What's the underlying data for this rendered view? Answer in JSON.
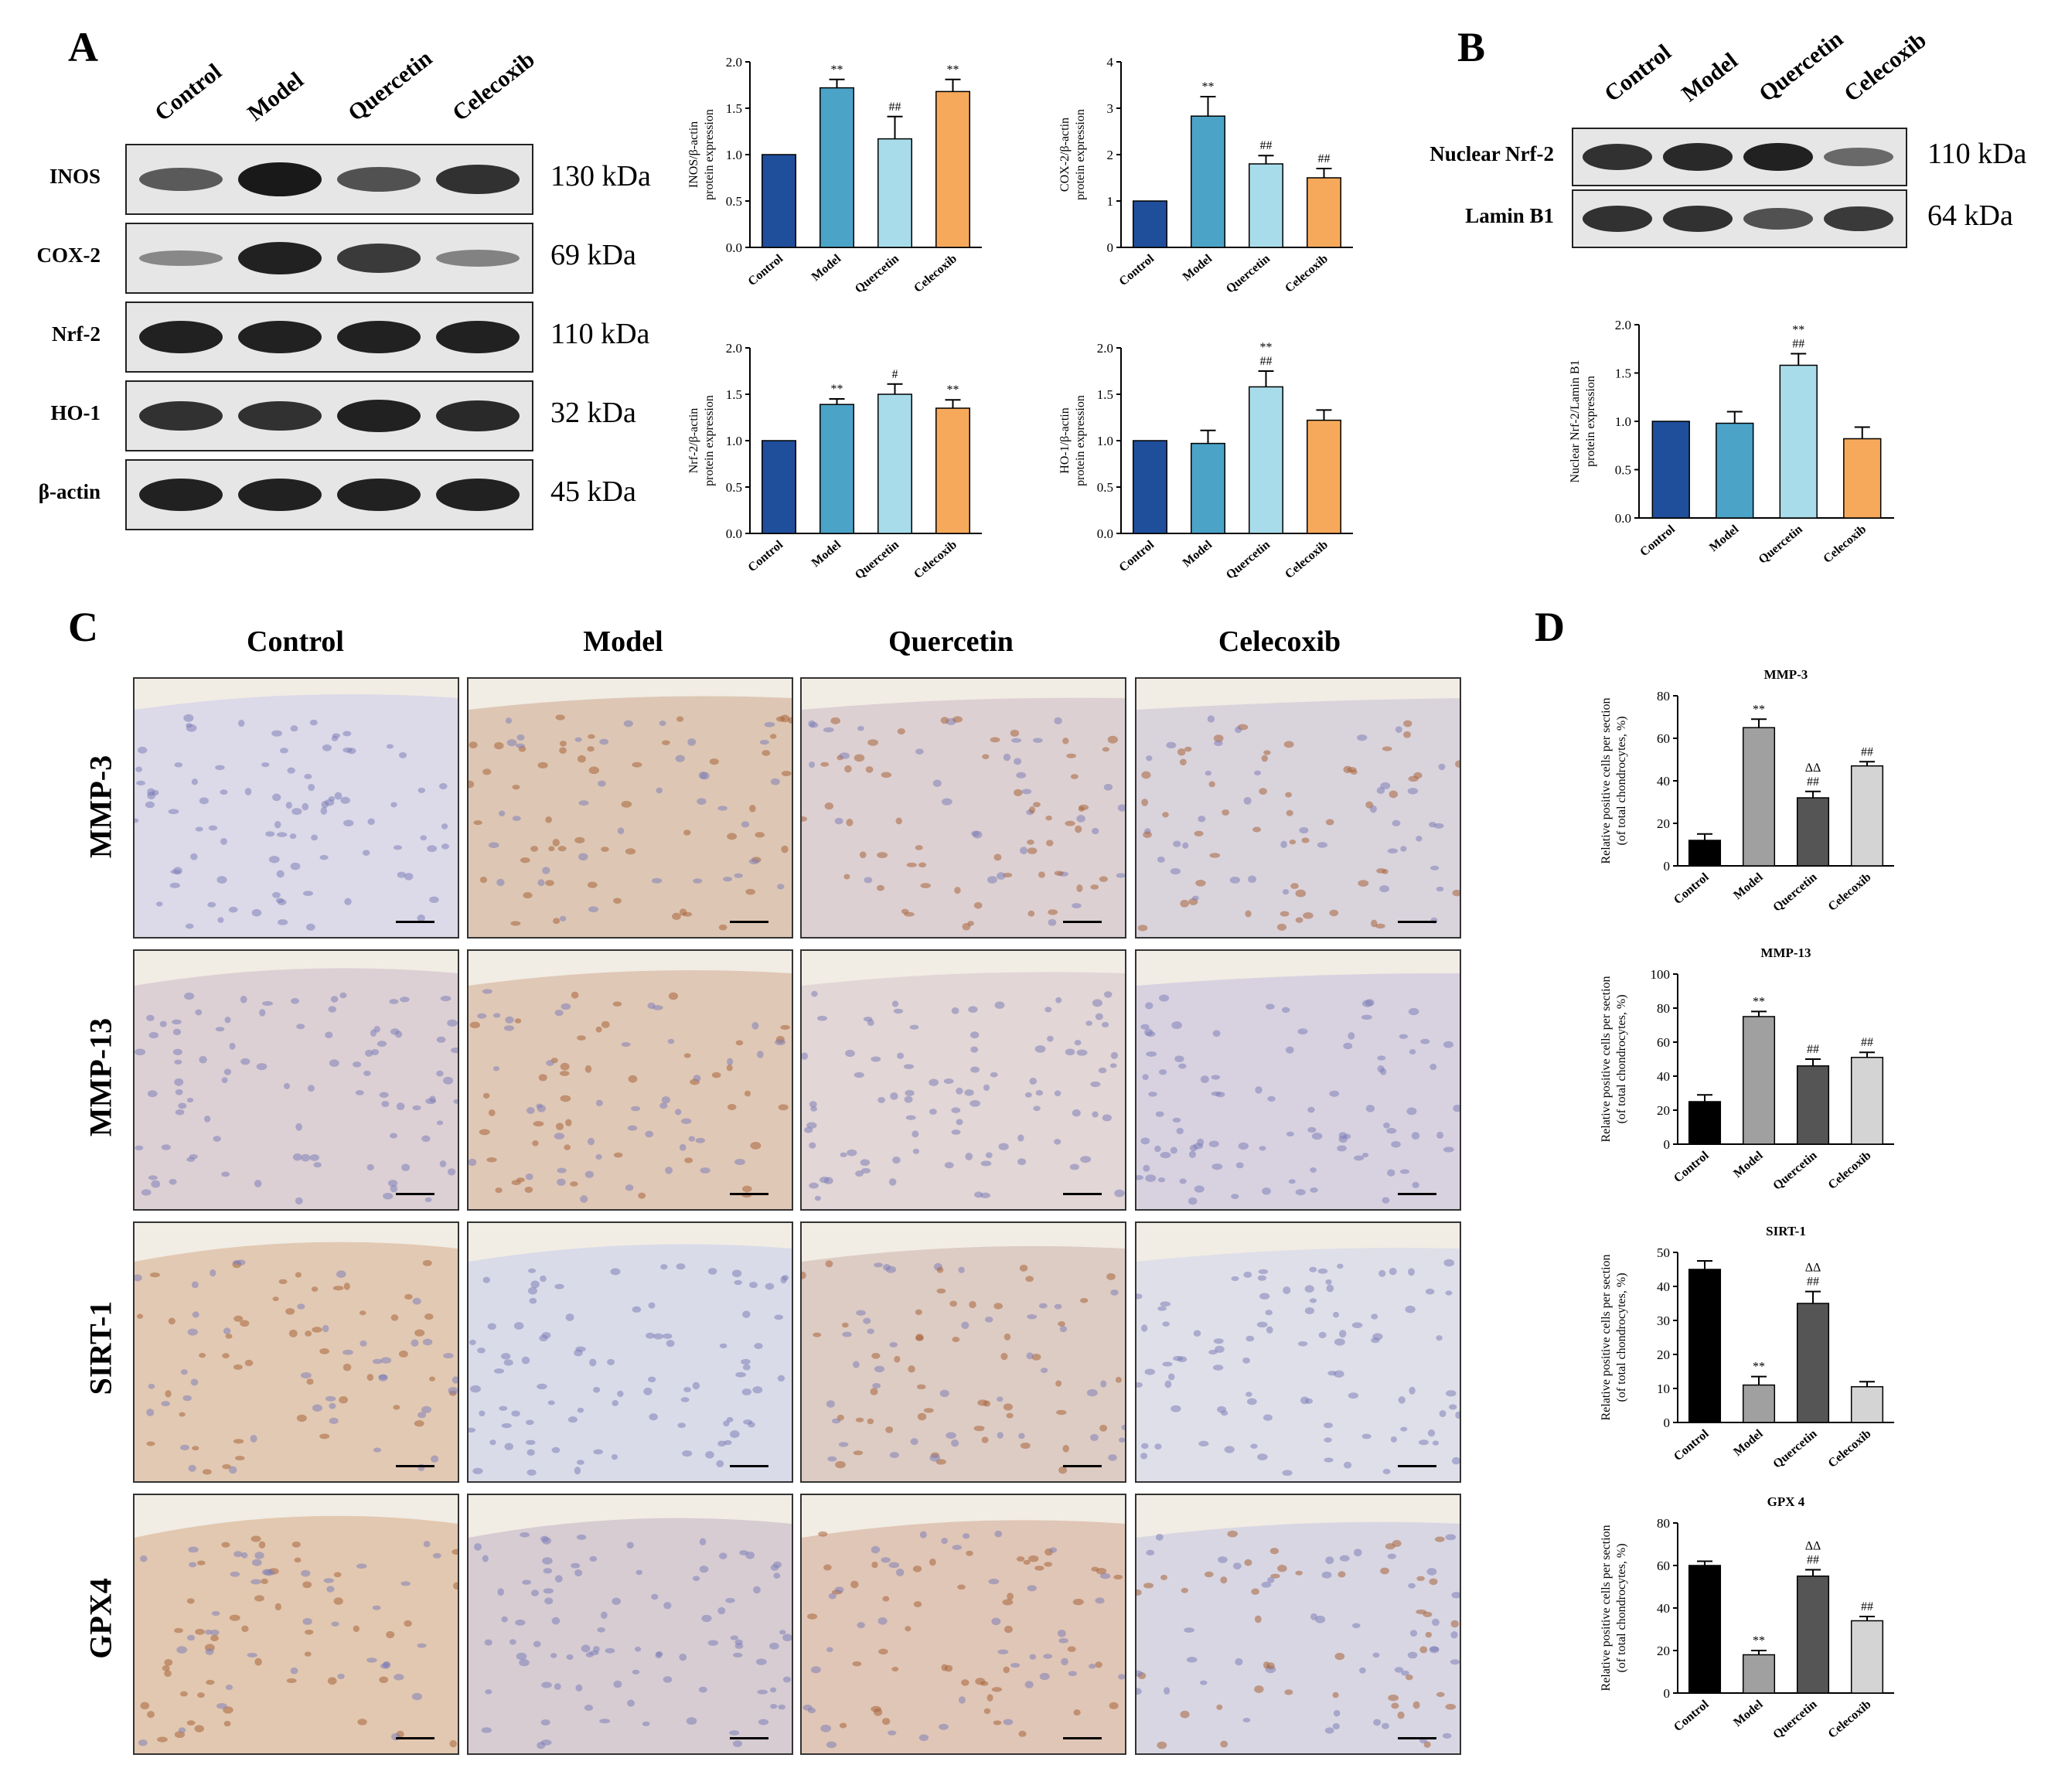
{
  "panel_letters": {
    "a": "A",
    "b": "B",
    "c": "C",
    "d": "D"
  },
  "lanes": [
    "Control",
    "Model",
    "Quercetin",
    "Celecoxib"
  ],
  "panel_a": {
    "blots": [
      {
        "label": "INOS",
        "kda": "130 kDa",
        "intensity": [
          0.55,
          0.95,
          0.6,
          0.8
        ]
      },
      {
        "label": "COX-2",
        "kda": "69 kDa",
        "intensity": [
          0.25,
          0.9,
          0.75,
          0.3
        ]
      },
      {
        "label": "Nrf-2",
        "kda": "110 kDa",
        "intensity": [
          0.9,
          0.9,
          0.9,
          0.9
        ]
      },
      {
        "label": "HO-1",
        "kda": "32 kDa",
        "intensity": [
          0.8,
          0.8,
          0.9,
          0.85
        ]
      },
      {
        "label": "β-actin",
        "kda": "45 kDa",
        "intensity": [
          0.9,
          0.9,
          0.9,
          0.9
        ]
      }
    ]
  },
  "panel_b": {
    "blots": [
      {
        "label": "Nuclear Nrf-2",
        "kda": "110 kDa",
        "intensity": [
          0.8,
          0.85,
          0.9,
          0.45
        ]
      },
      {
        "label": "Lamin B1",
        "kda": "64 kDa",
        "intensity": [
          0.8,
          0.8,
          0.6,
          0.75
        ]
      }
    ]
  },
  "panel_c": {
    "columns": [
      "Control",
      "Model",
      "Quercetin",
      "Celecoxib"
    ],
    "rows": [
      "MMP-3",
      "MMP-13",
      "SIRT-1",
      "GPX4"
    ]
  },
  "chart_data": [
    {
      "id": "inos",
      "type": "bar",
      "panel": "A",
      "ylabel": "INOS/β-actin protein expression",
      "categories": [
        "Control",
        "Model",
        "Quercetin",
        "Celecoxib"
      ],
      "values": [
        1.0,
        1.72,
        1.17,
        1.68
      ],
      "errors": [
        0,
        0.09,
        0.24,
        0.13
      ],
      "annotations": [
        "",
        "**",
        "##",
        "**"
      ],
      "ylim": [
        0,
        2.0
      ],
      "yticks": [
        "0.0",
        "0.5",
        "1.0",
        "1.5",
        "2.0"
      ],
      "colors": [
        "#1f4e9b",
        "#4ba3c7",
        "#a8dcea",
        "#f7a95b"
      ]
    },
    {
      "id": "cox2",
      "type": "bar",
      "panel": "A",
      "ylabel": "COX-2/β-actin protein expression",
      "categories": [
        "Control",
        "Model",
        "Quercetin",
        "Celecoxib"
      ],
      "values": [
        1.0,
        2.83,
        1.8,
        1.5
      ],
      "errors": [
        0,
        0.42,
        0.18,
        0.2
      ],
      "annotations": [
        "",
        "**",
        "##",
        "##"
      ],
      "ylim": [
        0,
        4
      ],
      "yticks": [
        "0",
        "1",
        "2",
        "3",
        "4"
      ],
      "colors": [
        "#1f4e9b",
        "#4ba3c7",
        "#a8dcea",
        "#f7a95b"
      ]
    },
    {
      "id": "nrf2",
      "type": "bar",
      "panel": "A",
      "ylabel": "Nrf-2/β-actin protein expression",
      "categories": [
        "Control",
        "Model",
        "Quercetin",
        "Celecoxib"
      ],
      "values": [
        1.0,
        1.39,
        1.5,
        1.35
      ],
      "errors": [
        0,
        0.06,
        0.11,
        0.09
      ],
      "annotations": [
        "",
        "**",
        "#",
        "**"
      ],
      "ylim": [
        0,
        2.0
      ],
      "yticks": [
        "0.0",
        "0.5",
        "1.0",
        "1.5",
        "2.0"
      ],
      "colors": [
        "#1f4e9b",
        "#4ba3c7",
        "#a8dcea",
        "#f7a95b"
      ]
    },
    {
      "id": "ho1",
      "type": "bar",
      "panel": "A",
      "ylabel": "HO-1/β-actin protein expression",
      "categories": [
        "Control",
        "Model",
        "Quercetin",
        "Celecoxib"
      ],
      "values": [
        1.0,
        0.97,
        1.58,
        1.22
      ],
      "errors": [
        0,
        0.14,
        0.17,
        0.11
      ],
      "annotations": [
        "",
        "",
        "**\n##",
        ""
      ],
      "ylim": [
        0,
        2.0
      ],
      "yticks": [
        "0.0",
        "0.5",
        "1.0",
        "1.5",
        "2.0"
      ],
      "colors": [
        "#1f4e9b",
        "#4ba3c7",
        "#a8dcea",
        "#f7a95b"
      ]
    },
    {
      "id": "nuclear_nrf2",
      "type": "bar",
      "panel": "B",
      "ylabel": "Nuclear Nrf-2/Lamin B1 protein expression",
      "categories": [
        "Control",
        "Model",
        "Quercetin",
        "Celecoxib"
      ],
      "values": [
        1.0,
        0.98,
        1.58,
        0.82
      ],
      "errors": [
        0,
        0.12,
        0.12,
        0.12
      ],
      "annotations": [
        "",
        "",
        "**\n##",
        ""
      ],
      "ylim": [
        0,
        2.0
      ],
      "yticks": [
        "0.0",
        "0.5",
        "1.0",
        "1.5",
        "2.0"
      ],
      "colors": [
        "#1f4e9b",
        "#4ba3c7",
        "#a8dcea",
        "#f7a95b"
      ]
    },
    {
      "id": "mmp3",
      "type": "bar",
      "panel": "D",
      "title": "MMP-3",
      "ylabel": "Relative positive cells per section (of total chondrocytes, %)",
      "categories": [
        "Control",
        "Model",
        "Quercetin",
        "Celecoxib"
      ],
      "values": [
        12,
        65,
        32,
        47
      ],
      "errors": [
        3,
        4,
        3,
        2
      ],
      "annotations": [
        "",
        "**",
        "ΔΔ\n##",
        "##"
      ],
      "ylim": [
        0,
        80
      ],
      "yticks": [
        "0",
        "20",
        "40",
        "60",
        "80"
      ],
      "colors": [
        "#000000",
        "#a0a0a0",
        "#555555",
        "#d4d4d4"
      ]
    },
    {
      "id": "mmp13",
      "type": "bar",
      "panel": "D",
      "title": "MMP-13",
      "ylabel": "Relative positive cells per section (of total chondrocytes, %)",
      "categories": [
        "Control",
        "Model",
        "Quercetin",
        "Celecoxib"
      ],
      "values": [
        25,
        75,
        46,
        51
      ],
      "errors": [
        4,
        3,
        4,
        3
      ],
      "annotations": [
        "",
        "**",
        "##",
        "##"
      ],
      "ylim": [
        0,
        100
      ],
      "yticks": [
        "0",
        "20",
        "40",
        "60",
        "80",
        "100"
      ],
      "colors": [
        "#000000",
        "#a0a0a0",
        "#555555",
        "#d4d4d4"
      ]
    },
    {
      "id": "sirt1",
      "type": "bar",
      "panel": "D",
      "title": "SIRT-1",
      "ylabel": "Relative positive cells per section (of total chondrocytes, %)",
      "categories": [
        "Control",
        "Model",
        "Quercetin",
        "Celecoxib"
      ],
      "values": [
        45,
        11,
        35,
        10.5
      ],
      "errors": [
        2.5,
        2.5,
        3.5,
        1.5
      ],
      "annotations": [
        "",
        "**",
        "ΔΔ\n##",
        ""
      ],
      "ylim": [
        0,
        50
      ],
      "yticks": [
        "0",
        "10",
        "20",
        "30",
        "40",
        "50"
      ],
      "colors": [
        "#000000",
        "#a0a0a0",
        "#555555",
        "#d4d4d4"
      ]
    },
    {
      "id": "gpx4",
      "type": "bar",
      "panel": "D",
      "title": "GPX 4",
      "ylabel": "Relative positive cells per section (of total chondrocytes, %)",
      "categories": [
        "Control",
        "Model",
        "Quercetin",
        "Celecoxib"
      ],
      "values": [
        60,
        18,
        55,
        34
      ],
      "errors": [
        2,
        2,
        3,
        2
      ],
      "annotations": [
        "",
        "**",
        "ΔΔ\n##",
        "##"
      ],
      "ylim": [
        0,
        80
      ],
      "yticks": [
        "0",
        "20",
        "40",
        "60",
        "80"
      ],
      "colors": [
        "#000000",
        "#a0a0a0",
        "#555555",
        "#d4d4d4"
      ]
    }
  ]
}
